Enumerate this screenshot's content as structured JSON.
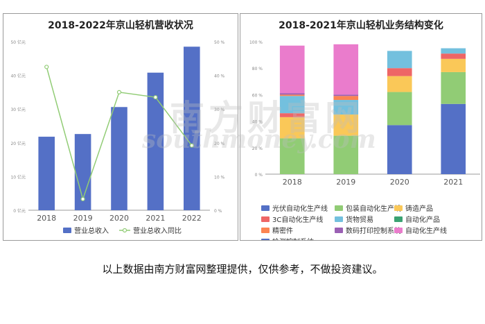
{
  "chart_data": [
    {
      "type": "bar",
      "title": "2018-2022年京山轻机营收状况",
      "categories": [
        "2018",
        "2019",
        "2020",
        "2021",
        "2022"
      ],
      "y_left_ticks": [
        "0 亿元",
        "10 亿元",
        "20 亿元",
        "30 亿元",
        "40 亿元",
        "50 亿元"
      ],
      "y_right_ticks": [
        "0 %",
        "10 %",
        "20 %",
        "30 %",
        "40 %",
        "50 %"
      ],
      "ylim": [
        0,
        50
      ],
      "y2lim": [
        0,
        50
      ],
      "series": [
        {
          "name": "营业总收入",
          "kind": "bar",
          "color": "#5470c6",
          "values": [
            21.8,
            22.6,
            30.6,
            40.8,
            48.5
          ]
        },
        {
          "name": "营业总收入同比",
          "kind": "line",
          "color": "#91cc75",
          "values": [
            42.5,
            3.3,
            35.0,
            33.5,
            19.2
          ]
        }
      ],
      "legend": "bottom",
      "grid": false
    },
    {
      "type": "bar",
      "stacked": true,
      "title": "2018-2021年京山轻机业务结构变化",
      "categories": [
        "2018",
        "2019",
        "2020",
        "2021"
      ],
      "y_ticks": [
        "0 %",
        "20 %",
        "40 %",
        "60 %",
        "80 %",
        "100 %"
      ],
      "ylim": [
        0,
        100
      ],
      "series": [
        {
          "name": "光伏自动化生产线",
          "color": "#5470c6",
          "values": [
            0,
            0,
            37,
            53
          ]
        },
        {
          "name": "包装自动化生产线",
          "color": "#91cc75",
          "values": [
            27,
            29,
            25,
            24
          ]
        },
        {
          "name": "铸造产品",
          "color": "#fac858",
          "values": [
            16,
            16,
            12,
            10
          ]
        },
        {
          "name": "3C自动化生产线",
          "color": "#ee6666",
          "values": [
            3,
            0,
            6,
            4
          ]
        },
        {
          "name": "货物贸易",
          "color": "#73c0de",
          "values": [
            13,
            11,
            13,
            4
          ]
        },
        {
          "name": "自动化产品",
          "color": "#3ba272",
          "values": [
            0,
            0,
            0,
            0
          ]
        },
        {
          "name": "精密件",
          "color": "#fc8452",
          "values": [
            1,
            3,
            0,
            0
          ]
        },
        {
          "name": "数码打印控制系统",
          "color": "#9a60b4",
          "values": [
            1,
            1,
            0,
            0
          ]
        },
        {
          "name": "自动化生产线",
          "color": "#ea7ccc",
          "values": [
            36,
            38,
            0,
            0
          ]
        },
        {
          "name": "检测控制系统",
          "color": "#5470c6",
          "values": [
            0,
            0,
            0,
            0
          ]
        }
      ],
      "legend": "bottom",
      "grid": false
    }
  ],
  "footer": {
    "caption": "以上数据由南方财富网整理提供，仅供参考，不做投资建议。"
  },
  "watermark": {
    "text": "南方财富网",
    "latin": "southmoney.com"
  }
}
